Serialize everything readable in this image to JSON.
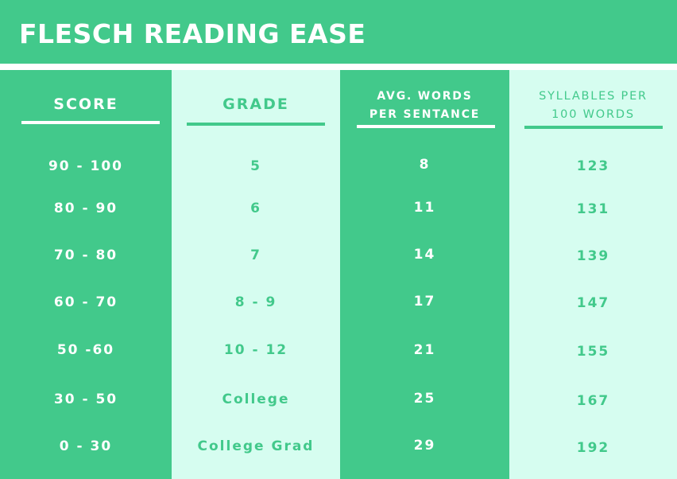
{
  "title": "FLESCH READING EASE",
  "columns": {
    "score": {
      "header": "SCORE"
    },
    "grade": {
      "header": "GRADE"
    },
    "words": {
      "header_line1": "AVG. WORDS",
      "header_line2": "PER SENTANCE"
    },
    "syllables": {
      "header_line1": "SYLLABLES PER",
      "header_line2": "100 WORDS"
    }
  },
  "rows": [
    {
      "score": "90 - 100",
      "grade": "5",
      "words": "8",
      "syllables": "123"
    },
    {
      "score": "80 - 90",
      "grade": "6",
      "words": "11",
      "syllables": "131"
    },
    {
      "score": "70 - 80",
      "grade": "7",
      "words": "14",
      "syllables": "139"
    },
    {
      "score": "60 - 70",
      "grade": "8 - 9",
      "words": "17",
      "syllables": "147"
    },
    {
      "score": "50 -60",
      "grade": "10 - 12",
      "words": "21",
      "syllables": "155"
    },
    {
      "score": "30 - 50",
      "grade": "College",
      "words": "25",
      "syllables": "167"
    },
    {
      "score": "0 - 30",
      "grade": "College Grad",
      "words": "29",
      "syllables": "192"
    }
  ],
  "colors": {
    "accent": "#42c98b",
    "light": "#d6fdf0",
    "text_on_accent": "#ffffff"
  }
}
